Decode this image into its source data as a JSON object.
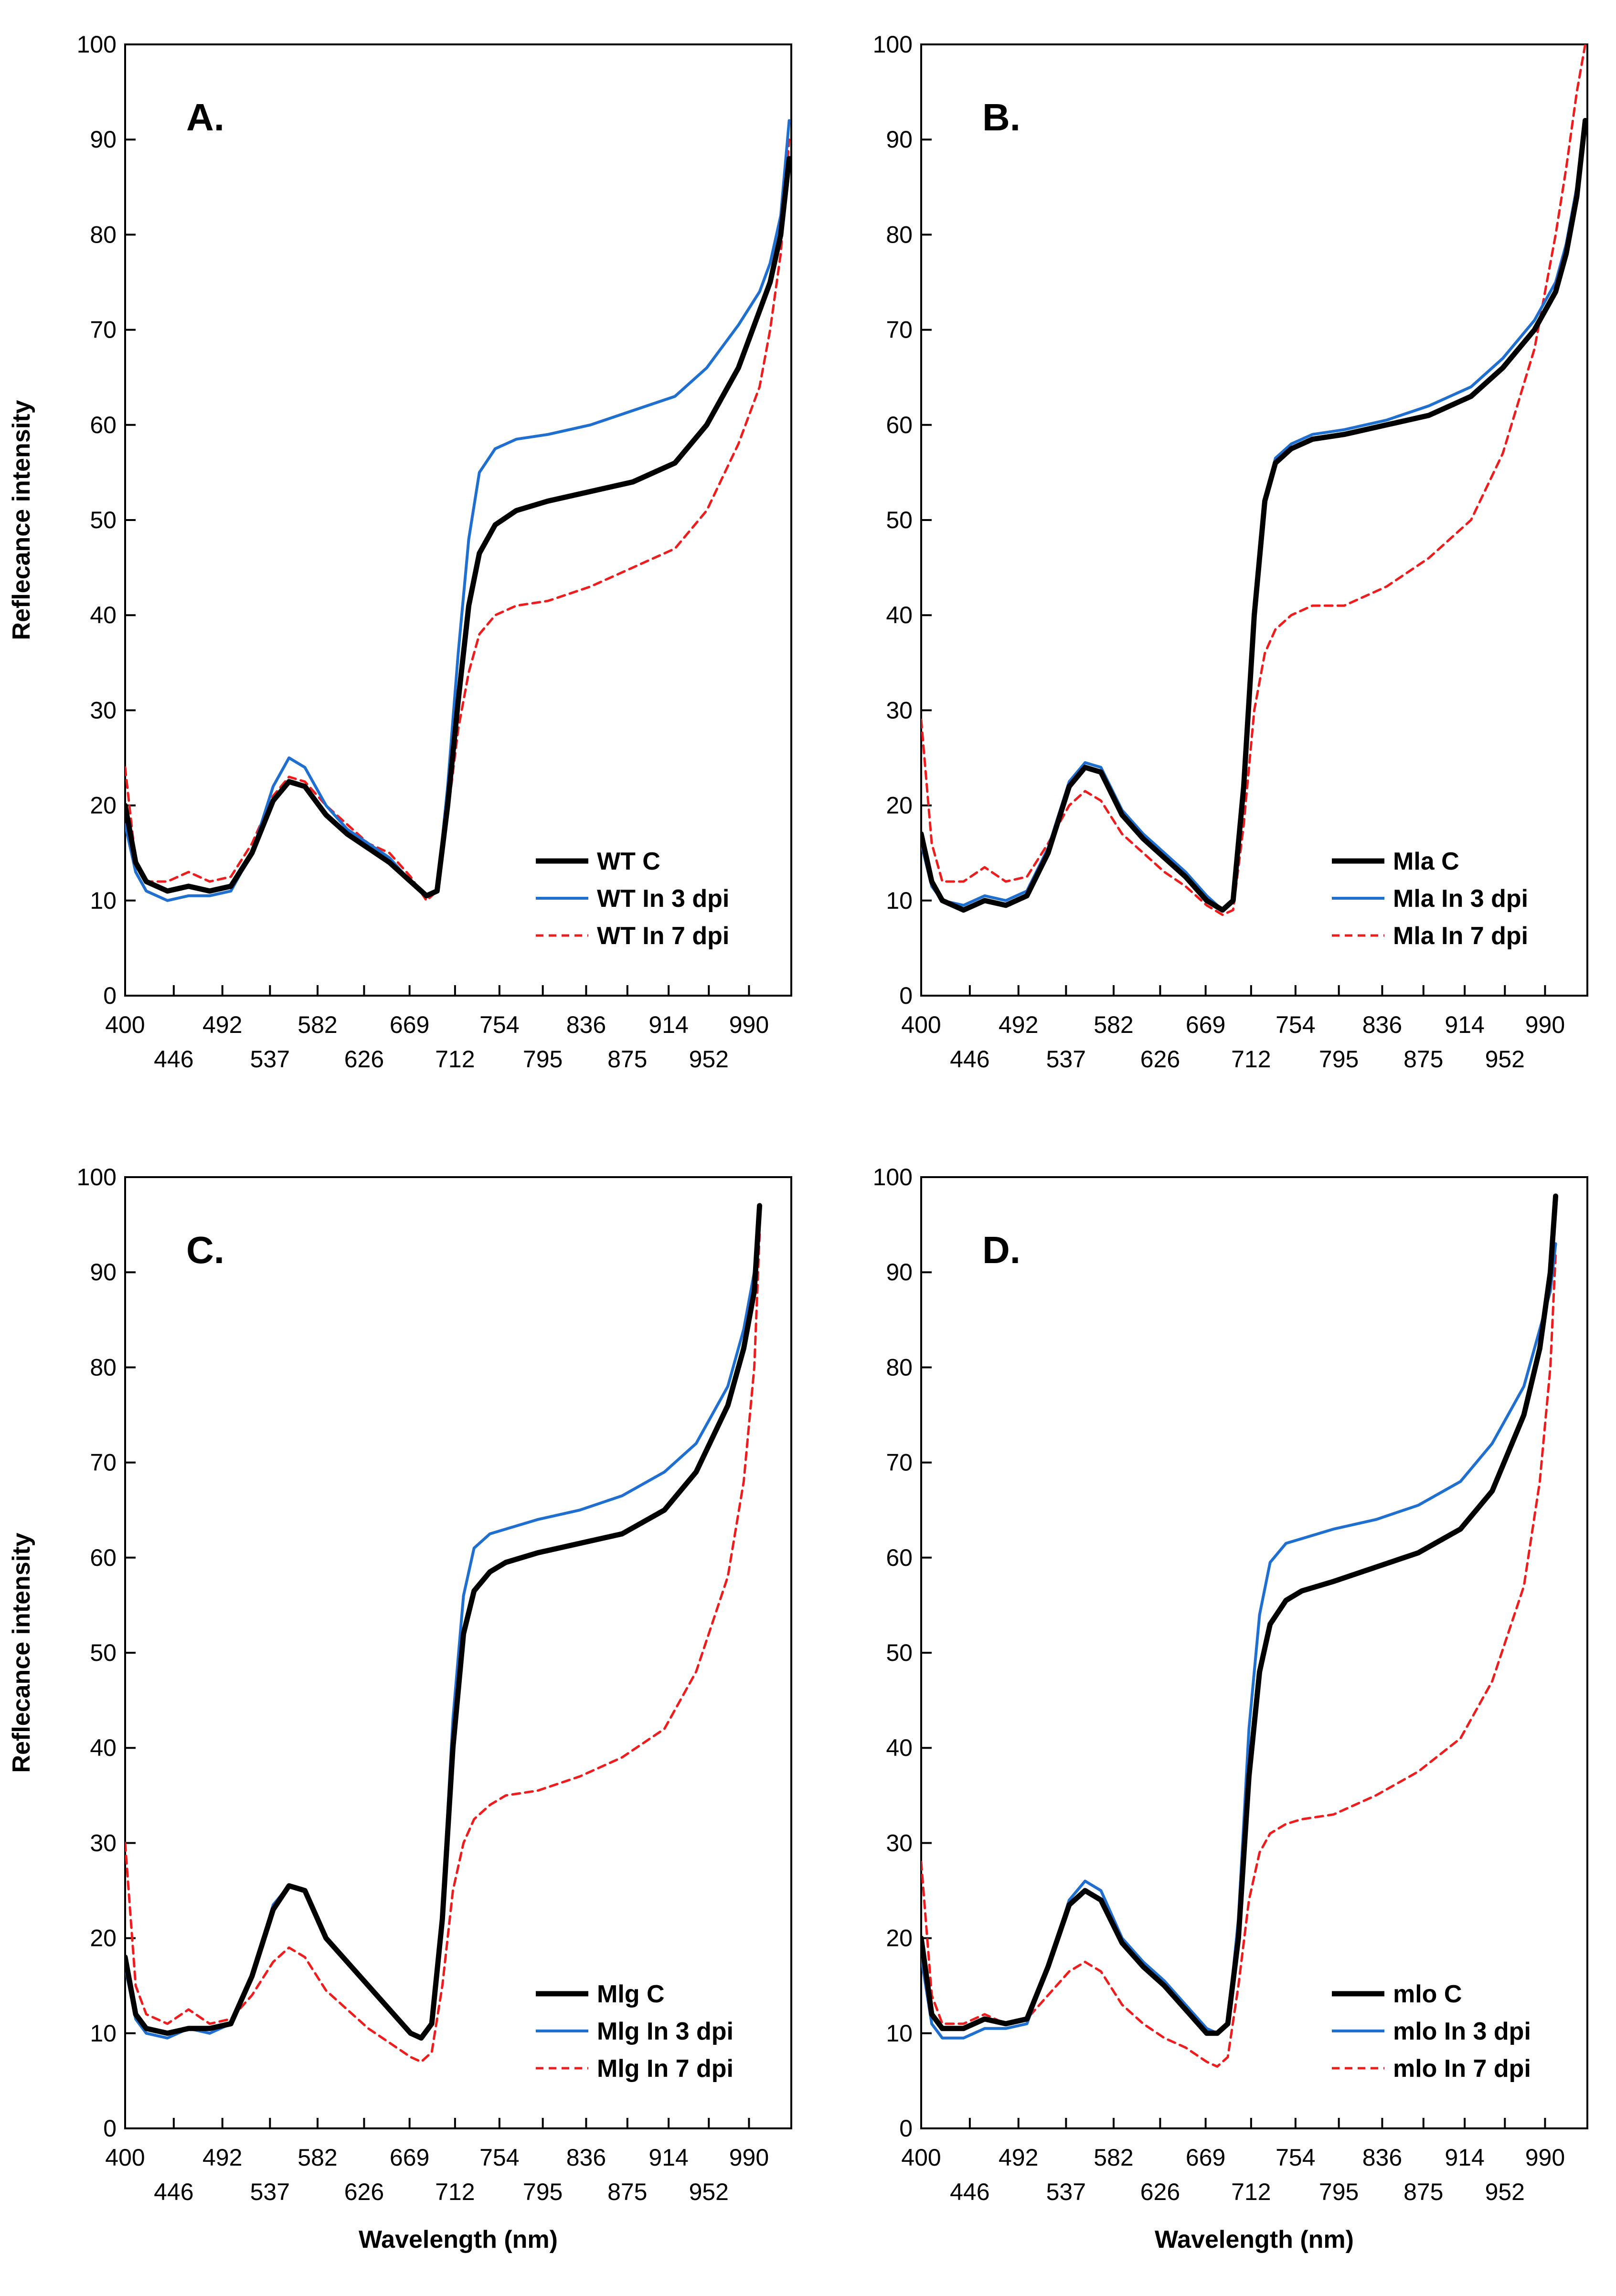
{
  "figure": {
    "ylabel": "Reflecance intensity",
    "xlabel": "Wavelength (nm)",
    "xticks_top": [
      "400",
      "492",
      "582",
      "669",
      "754",
      "836",
      "914",
      "990"
    ],
    "xticks_bottom": [
      "446",
      "537",
      "626",
      "712",
      "795",
      "875",
      "952"
    ],
    "yticks": [
      "0",
      "10",
      "20",
      "30",
      "40",
      "50",
      "60",
      "70",
      "80",
      "90",
      "100"
    ]
  },
  "chart_data": [
    {
      "type": "line",
      "title": "A.",
      "xlabel": "",
      "ylabel": "Reflecance intensity",
      "xlim": [
        400,
        1030
      ],
      "ylim": [
        0,
        100
      ],
      "grid": false,
      "legend_position": "bottom-right",
      "colors": {
        "control": "#000000",
        "d3": "#1f6fd1",
        "d7": "#ee1c1c"
      },
      "series": [
        {
          "name": "WT C",
          "x": [
            400,
            410,
            420,
            440,
            460,
            480,
            500,
            520,
            540,
            555,
            570,
            590,
            610,
            630,
            650,
            670,
            685,
            695,
            705,
            715,
            725,
            735,
            750,
            770,
            800,
            840,
            880,
            920,
            950,
            980,
            1000,
            1010,
            1020,
            1028
          ],
          "values": [
            20,
            14,
            12,
            11,
            11.5,
            11,
            11.5,
            15,
            20.5,
            22.5,
            22,
            19,
            17,
            15.5,
            14,
            12,
            10.5,
            11,
            20,
            31,
            41,
            46.5,
            49.5,
            51,
            52,
            53,
            54,
            56,
            60,
            66,
            72,
            75,
            80,
            88
          ]
        },
        {
          "name": "WT In 3 dpi",
          "x": [
            400,
            410,
            420,
            440,
            460,
            480,
            500,
            520,
            540,
            555,
            570,
            590,
            610,
            630,
            650,
            670,
            685,
            695,
            705,
            715,
            725,
            735,
            750,
            770,
            800,
            840,
            880,
            920,
            950,
            980,
            1000,
            1010,
            1020,
            1028
          ],
          "values": [
            18,
            13,
            11,
            10,
            10.5,
            10.5,
            11,
            15,
            22,
            25,
            24,
            20,
            17.5,
            16,
            14.5,
            12,
            10.5,
            11,
            22,
            36,
            48,
            55,
            57.5,
            58.5,
            59,
            60,
            61.5,
            63,
            66,
            70.5,
            74,
            77,
            82,
            92
          ]
        },
        {
          "name": "WT In 7 dpi",
          "x": [
            400,
            410,
            420,
            440,
            460,
            480,
            500,
            520,
            540,
            555,
            570,
            590,
            610,
            630,
            650,
            670,
            685,
            695,
            705,
            715,
            725,
            735,
            750,
            770,
            800,
            840,
            880,
            920,
            950,
            980,
            1000,
            1010,
            1020,
            1028
          ],
          "values": [
            24,
            14,
            12,
            12,
            13,
            12,
            12.5,
            16,
            21,
            23,
            22.5,
            20,
            18,
            16,
            15,
            12.5,
            10,
            11,
            19,
            28,
            34,
            38,
            40,
            41,
            41.5,
            43,
            45,
            47,
            51,
            58,
            64,
            70,
            78,
            90
          ]
        }
      ]
    },
    {
      "type": "line",
      "title": "B.",
      "xlabel": "",
      "ylabel": "",
      "xlim": [
        400,
        1030
      ],
      "ylim": [
        0,
        100
      ],
      "grid": false,
      "legend_position": "bottom-right",
      "colors": {
        "control": "#000000",
        "d3": "#1f6fd1",
        "d7": "#ee1c1c"
      },
      "series": [
        {
          "name": "Mla C",
          "x": [
            400,
            410,
            420,
            440,
            460,
            480,
            500,
            520,
            540,
            555,
            570,
            590,
            610,
            630,
            650,
            670,
            685,
            695,
            705,
            715,
            725,
            735,
            750,
            770,
            800,
            840,
            880,
            920,
            950,
            980,
            1000,
            1010,
            1020,
            1028
          ],
          "values": [
            17,
            12,
            10,
            9,
            10,
            9.5,
            10.5,
            15,
            22,
            24,
            23.5,
            19,
            16.5,
            14.5,
            12.5,
            10,
            9,
            10,
            22,
            40,
            52,
            56,
            57.5,
            58.5,
            59,
            60,
            61,
            63,
            66,
            70,
            74,
            78,
            84,
            92
          ]
        },
        {
          "name": "Mla In 3 dpi",
          "x": [
            400,
            410,
            420,
            440,
            460,
            480,
            500,
            520,
            540,
            555,
            570,
            590,
            610,
            630,
            650,
            670,
            685,
            695,
            705,
            715,
            725,
            735,
            750,
            770,
            800,
            840,
            880,
            920,
            950,
            980,
            1000,
            1010,
            1020,
            1028
          ],
          "values": [
            16,
            11.5,
            10,
            9.5,
            10.5,
            10,
            11,
            15.5,
            22.5,
            24.5,
            24,
            19.5,
            17,
            15,
            13,
            10.5,
            9,
            10,
            22,
            40,
            52,
            56.5,
            58,
            59,
            59.5,
            60.5,
            62,
            64,
            67,
            71,
            75,
            79,
            85,
            92
          ]
        },
        {
          "name": "Mla In 7 dpi",
          "x": [
            400,
            410,
            420,
            440,
            460,
            480,
            500,
            520,
            540,
            555,
            570,
            590,
            610,
            630,
            650,
            670,
            685,
            695,
            705,
            715,
            725,
            735,
            750,
            770,
            800,
            840,
            880,
            920,
            950,
            980,
            1000,
            1010,
            1020,
            1028
          ],
          "values": [
            29,
            16,
            12,
            12,
            13.5,
            12,
            12.5,
            16,
            20,
            21.5,
            20.5,
            17,
            15,
            13,
            11.5,
            9.5,
            8.5,
            9,
            18,
            30,
            36,
            38.5,
            40,
            41,
            41,
            43,
            46,
            50,
            57,
            68,
            80,
            87,
            95,
            100
          ]
        }
      ]
    },
    {
      "type": "line",
      "title": "C.",
      "xlabel": "Wavelength (nm)",
      "ylabel": "Reflecance intensity",
      "xlim": [
        400,
        1030
      ],
      "ylim": [
        0,
        100
      ],
      "grid": false,
      "legend_position": "bottom-right",
      "colors": {
        "control": "#000000",
        "d3": "#1f6fd1",
        "d7": "#ee1c1c"
      },
      "series": [
        {
          "name": "Mlg C",
          "x": [
            400,
            410,
            420,
            440,
            460,
            480,
            500,
            520,
            540,
            555,
            570,
            590,
            610,
            630,
            650,
            670,
            680,
            690,
            700,
            710,
            720,
            730,
            745,
            760,
            790,
            830,
            870,
            910,
            940,
            970,
            985,
            995,
            1000
          ],
          "values": [
            18,
            12,
            10.5,
            10,
            10.5,
            10.5,
            11,
            16,
            23,
            25.5,
            25,
            20,
            17.5,
            15,
            12.5,
            10,
            9.5,
            11,
            22,
            40,
            52,
            56.5,
            58.5,
            59.5,
            60.5,
            61.5,
            62.5,
            65,
            69,
            76,
            82,
            88,
            97
          ]
        },
        {
          "name": "Mlg In 3 dpi",
          "x": [
            400,
            410,
            420,
            440,
            460,
            480,
            500,
            520,
            540,
            555,
            570,
            590,
            610,
            630,
            650,
            670,
            680,
            690,
            700,
            710,
            720,
            730,
            745,
            760,
            790,
            830,
            870,
            910,
            940,
            970,
            985,
            995,
            1000
          ],
          "values": [
            17,
            11.5,
            10,
            9.5,
            10.5,
            10,
            11,
            16,
            23.5,
            25.5,
            25,
            20,
            17.5,
            15,
            12.5,
            10,
            9.5,
            11,
            23,
            43,
            56,
            61,
            62.5,
            63,
            64,
            65,
            66.5,
            69,
            72,
            78,
            84,
            90,
            96
          ]
        },
        {
          "name": "Mlg In 7 dpi",
          "x": [
            400,
            410,
            420,
            440,
            460,
            480,
            500,
            520,
            540,
            555,
            570,
            590,
            610,
            630,
            650,
            670,
            680,
            690,
            700,
            710,
            720,
            730,
            745,
            760,
            790,
            830,
            870,
            910,
            940,
            970,
            985,
            995,
            1000
          ],
          "values": [
            30,
            15,
            12,
            11,
            12.5,
            11,
            11.5,
            14,
            17.5,
            19,
            18,
            14.5,
            12.5,
            10.5,
            9,
            7.5,
            7,
            8,
            15,
            25,
            30,
            32.5,
            34,
            35,
            35.5,
            37,
            39,
            42,
            48,
            58,
            68,
            80,
            94
          ]
        }
      ]
    },
    {
      "type": "line",
      "title": "D.",
      "xlabel": "Wavelength (nm)",
      "ylabel": "",
      "xlim": [
        400,
        1030
      ],
      "ylim": [
        0,
        100
      ],
      "grid": false,
      "legend_position": "bottom-right",
      "colors": {
        "control": "#000000",
        "d3": "#1f6fd1",
        "d7": "#ee1c1c"
      },
      "series": [
        {
          "name": "mlo C",
          "x": [
            400,
            410,
            420,
            440,
            460,
            480,
            500,
            520,
            540,
            555,
            570,
            590,
            610,
            630,
            650,
            670,
            680,
            690,
            700,
            710,
            720,
            730,
            745,
            760,
            790,
            830,
            870,
            910,
            940,
            970,
            985,
            995,
            1000
          ],
          "values": [
            20,
            12,
            10.5,
            10.5,
            11.5,
            11,
            11.5,
            17,
            23.5,
            25,
            24,
            19.5,
            17,
            15,
            12.5,
            10,
            10,
            11,
            20,
            37,
            48,
            53,
            55.5,
            56.5,
            57.5,
            59,
            60.5,
            63,
            67,
            75,
            82,
            90,
            98
          ]
        },
        {
          "name": "mlo In 3 dpi",
          "x": [
            400,
            410,
            420,
            440,
            460,
            480,
            500,
            520,
            540,
            555,
            570,
            590,
            610,
            630,
            650,
            670,
            680,
            690,
            700,
            710,
            720,
            730,
            745,
            760,
            790,
            830,
            870,
            910,
            940,
            970,
            985,
            995,
            1000
          ],
          "values": [
            18,
            11,
            9.5,
            9.5,
            10.5,
            10.5,
            11,
            17,
            24,
            26,
            25,
            20,
            17.5,
            15.5,
            13,
            10.5,
            10,
            11,
            22,
            42,
            54,
            59.5,
            61.5,
            62,
            63,
            64,
            65.5,
            68,
            72,
            78,
            84,
            88,
            93
          ]
        },
        {
          "name": "mlo In 7 dpi",
          "x": [
            400,
            410,
            420,
            440,
            460,
            480,
            500,
            520,
            540,
            555,
            570,
            590,
            610,
            630,
            650,
            670,
            680,
            690,
            700,
            710,
            720,
            730,
            745,
            760,
            790,
            830,
            870,
            910,
            940,
            970,
            985,
            995,
            1000
          ],
          "values": [
            28,
            14,
            11,
            11,
            12,
            11,
            11.5,
            14,
            16.5,
            17.5,
            16.5,
            13,
            11,
            9.5,
            8.5,
            7,
            6.5,
            7.5,
            15,
            24,
            29,
            31,
            32,
            32.5,
            33,
            35,
            37.5,
            41,
            47,
            57,
            68,
            80,
            92
          ]
        }
      ]
    }
  ]
}
